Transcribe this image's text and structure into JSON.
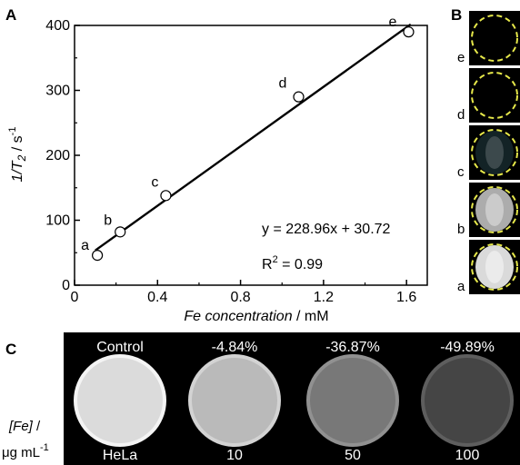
{
  "panels": {
    "a": "A",
    "b": "B",
    "c": "C"
  },
  "chart_data": {
    "type": "scatter",
    "xlabel_italic": "Fe concentration",
    "xlabel_unit": " / mM",
    "ylabel_main": "1/T",
    "ylabel_sub": "2",
    "ylabel_unit": " / s",
    "ylabel_sup": "-1",
    "xlim": [
      0,
      1.7
    ],
    "ylim": [
      0,
      400
    ],
    "xticks": [
      "0",
      "0.4",
      "0.8",
      "1.2",
      "1.6"
    ],
    "xtick_values": [
      0,
      0.4,
      0.8,
      1.2,
      1.6
    ],
    "yticks": [
      "0",
      "100",
      "200",
      "300",
      "400"
    ],
    "ytick_values": [
      0,
      100,
      200,
      300,
      400
    ],
    "points": [
      {
        "label": "a",
        "x": 0.11,
        "y": 46
      },
      {
        "label": "b",
        "x": 0.22,
        "y": 82
      },
      {
        "label": "c",
        "x": 0.44,
        "y": 138
      },
      {
        "label": "d",
        "x": 1.08,
        "y": 290
      },
      {
        "label": "e",
        "x": 1.61,
        "y": 390
      }
    ],
    "fit": {
      "slope": 228.96,
      "intercept": 30.72,
      "x_range": [
        0.1,
        1.62
      ]
    },
    "equation": "y = 228.96x + 30.72",
    "r2_base": "R",
    "r2_sup": "2",
    "r2_rest": " = 0.99"
  },
  "panel_b": {
    "labels": [
      "e",
      "d",
      "c",
      "b",
      "a"
    ],
    "ring_color": "#e6e84a",
    "cell_brightness": [
      0,
      0,
      0.35,
      0.75,
      0.95
    ]
  },
  "panel_c": {
    "top_labels": [
      "Control",
      "-4.84%",
      "-36.87%",
      "-49.89%"
    ],
    "bottom_labels": [
      "HeLa",
      "10",
      "50",
      "100"
    ],
    "side_label_italic": "[Fe]",
    "side_label_slash": " /",
    "side_label_unit": "μg mL",
    "side_label_sup": "-1",
    "circle_gray": [
      0.86,
      0.73,
      0.47,
      0.27
    ]
  }
}
